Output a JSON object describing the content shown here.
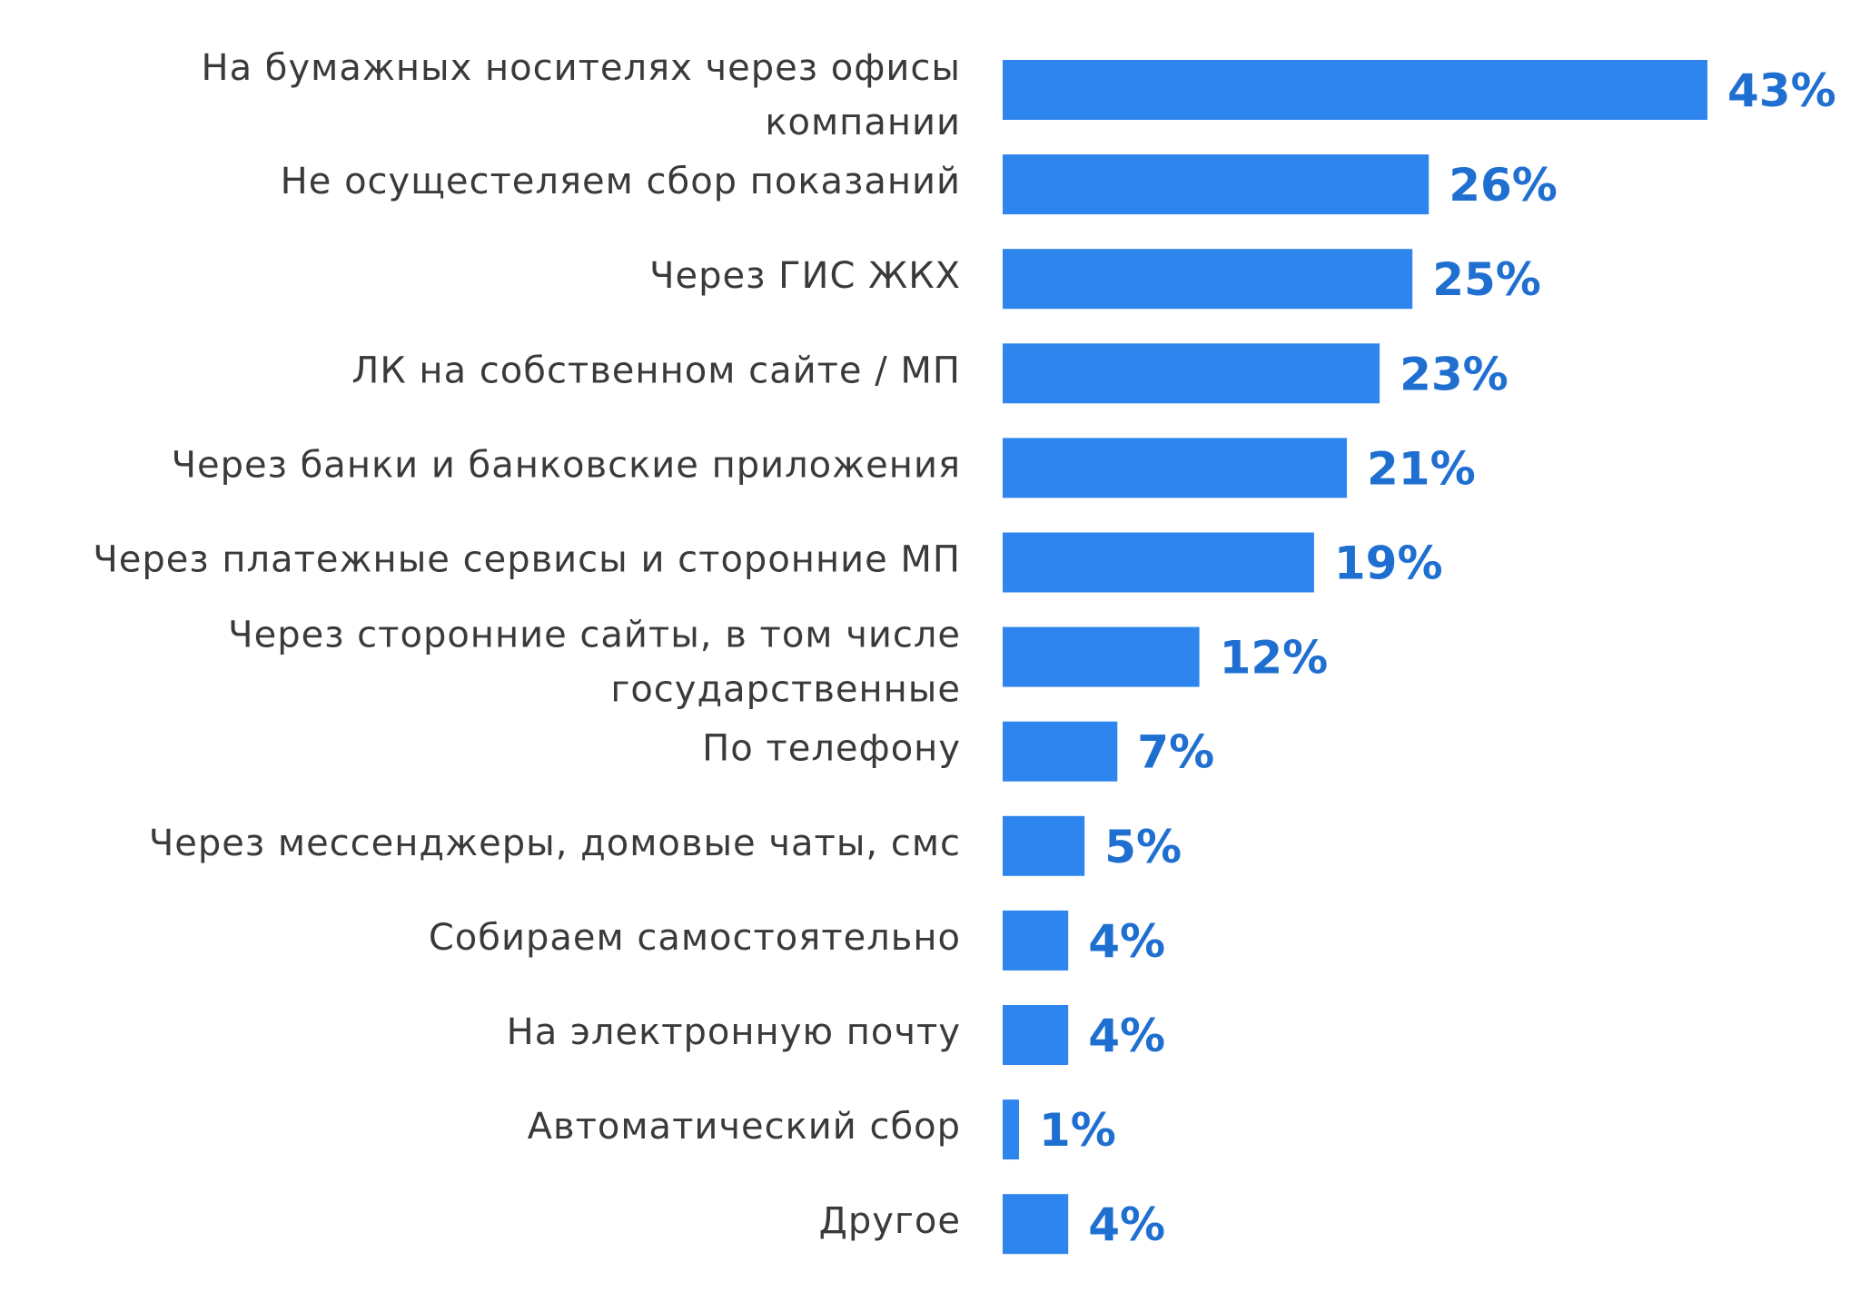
{
  "chart_data": {
    "type": "bar",
    "orientation": "horizontal",
    "title": "",
    "xlabel": "",
    "ylabel": "",
    "xlim": [
      0,
      43
    ],
    "unit": "%",
    "color": "#2f85ee",
    "label_color": "#1f6fd1",
    "categories": [
      [
        "На бумажных носителях через офисы",
        "компании"
      ],
      [
        "Не осущестеляем сбор показаний"
      ],
      [
        "Через ГИС ЖКХ"
      ],
      [
        "ЛК на собственном сайте / МП"
      ],
      [
        "Через банки и банковские приложения"
      ],
      [
        "Через платежные сервисы и сторонние МП"
      ],
      [
        "Через сторонние сайты, в том числе",
        "государственные"
      ],
      [
        "По телефону"
      ],
      [
        "Через мессенджеры, домовые чаты, смс"
      ],
      [
        "Собираем самостоятельно"
      ],
      [
        "На электронную почту"
      ],
      [
        "Автоматический сбор"
      ],
      [
        "Другое"
      ]
    ],
    "values": [
      43,
      26,
      25,
      23,
      21,
      19,
      12,
      7,
      5,
      4,
      4,
      1,
      4
    ],
    "value_labels": [
      "43%",
      "26%",
      "25%",
      "23%",
      "21%",
      "19%",
      "12%",
      "7%",
      "5%",
      "4%",
      "4%",
      "1%",
      "4%"
    ]
  }
}
